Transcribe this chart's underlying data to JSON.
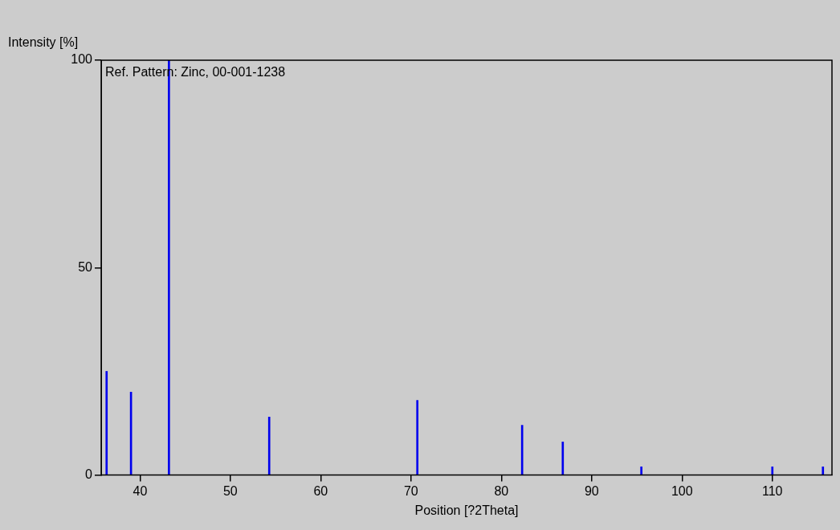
{
  "chart_data": {
    "type": "bar",
    "xlabel": "Position [?2Theta]",
    "ylabel": "Intensity [%]",
    "annotations": [
      "Ref. Pattern: Zinc, 00-001-1238"
    ],
    "x": [
      36.3,
      39.0,
      43.2,
      54.3,
      70.7,
      82.3,
      86.8,
      95.5,
      110.0,
      115.6
    ],
    "values": [
      25,
      20,
      100,
      14,
      18,
      12,
      8,
      2,
      2,
      2
    ],
    "color": "#0000ee",
    "xlim": [
      35.7,
      116.6
    ],
    "xticks": [
      40,
      50,
      60,
      70,
      80,
      90,
      100,
      110
    ],
    "ylim": [
      0,
      100
    ],
    "yticks": [
      0,
      50,
      100
    ],
    "grid": false,
    "legend": false
  }
}
